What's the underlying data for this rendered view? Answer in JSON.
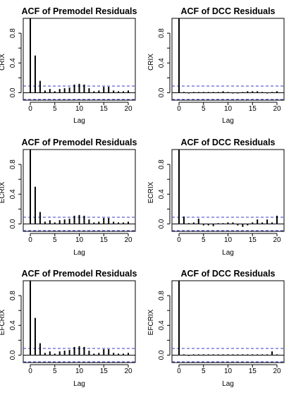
{
  "chart_data": [
    {
      "type": "bar",
      "title": "ACF of Premodel Residuals",
      "xlabel": "Lag",
      "ylabel": "CRIX",
      "xlim": [
        0,
        20
      ],
      "ylim": [
        -0.1,
        1.0
      ],
      "x_ticks": [
        "0",
        "5",
        "10",
        "15",
        "20"
      ],
      "y_ticks": [
        "0.0",
        "0.4",
        "0.8"
      ],
      "conf_bound": 0.09,
      "lags": [
        0,
        1,
        2,
        3,
        4,
        5,
        6,
        7,
        8,
        9,
        10,
        11,
        12,
        13,
        14,
        15,
        16,
        17,
        18,
        19,
        20
      ],
      "values": [
        1.0,
        0.5,
        0.16,
        0.03,
        0.05,
        0.02,
        0.05,
        0.06,
        0.07,
        0.11,
        0.12,
        0.11,
        0.06,
        0.02,
        0.03,
        0.08,
        0.08,
        0.03,
        0.02,
        0.02,
        0.03
      ]
    },
    {
      "type": "bar",
      "title": "ACF of DCC Residuals",
      "xlabel": "Lag",
      "ylabel": "CRIX",
      "xlim": [
        0,
        20
      ],
      "ylim": [
        -0.1,
        1.0
      ],
      "x_ticks": [
        "0",
        "5",
        "10",
        "15",
        "20"
      ],
      "y_ticks": [
        "0.0",
        "0.4",
        "0.8"
      ],
      "conf_bound": 0.09,
      "lags": [
        0,
        1,
        2,
        3,
        4,
        5,
        6,
        7,
        8,
        9,
        10,
        11,
        12,
        13,
        14,
        15,
        16,
        17,
        18,
        19,
        20
      ],
      "values": [
        1.0,
        0.01,
        -0.01,
        0.01,
        0.01,
        0.01,
        0.01,
        0.01,
        0.01,
        0.02,
        0.01,
        -0.01,
        -0.01,
        0.01,
        0.02,
        0.02,
        0.02,
        0.01,
        -0.01,
        0.01,
        0.02
      ]
    },
    {
      "type": "bar",
      "title": "ACF of Premodel Residuals",
      "xlabel": "Lag",
      "ylabel": "ECRIX",
      "xlim": [
        0,
        20
      ],
      "ylim": [
        -0.1,
        1.0
      ],
      "x_ticks": [
        "0",
        "5",
        "10",
        "15",
        "20"
      ],
      "y_ticks": [
        "0.0",
        "0.4",
        "0.8"
      ],
      "conf_bound": 0.09,
      "lags": [
        0,
        1,
        2,
        3,
        4,
        5,
        6,
        7,
        8,
        9,
        10,
        11,
        12,
        13,
        14,
        15,
        16,
        17,
        18,
        19,
        20
      ],
      "values": [
        1.0,
        0.5,
        0.16,
        0.03,
        0.05,
        0.02,
        0.05,
        0.06,
        0.07,
        0.11,
        0.12,
        0.11,
        0.06,
        0.02,
        0.03,
        0.08,
        0.08,
        0.03,
        0.02,
        0.02,
        0.03
      ]
    },
    {
      "type": "bar",
      "title": "ACF of DCC Residuals",
      "xlabel": "Lag",
      "ylabel": "ECRIX",
      "xlim": [
        0,
        20
      ],
      "ylim": [
        -0.1,
        1.0
      ],
      "x_ticks": [
        "0",
        "5",
        "10",
        "15",
        "20"
      ],
      "y_ticks": [
        "0.0",
        "0.4",
        "0.8"
      ],
      "conf_bound": 0.09,
      "lags": [
        0,
        1,
        2,
        3,
        4,
        5,
        6,
        7,
        8,
        9,
        10,
        11,
        12,
        13,
        14,
        15,
        16,
        17,
        18,
        19,
        20
      ],
      "values": [
        1.0,
        0.1,
        0.01,
        0.02,
        0.07,
        -0.02,
        -0.02,
        -0.03,
        0.01,
        0.01,
        0.02,
        0.02,
        -0.02,
        -0.04,
        -0.02,
        0.02,
        0.06,
        0.02,
        0.06,
        0.02,
        0.11
      ]
    },
    {
      "type": "bar",
      "title": "ACF of Premodel Residuals",
      "xlabel": "Lag",
      "ylabel": "EFCRIX",
      "xlim": [
        0,
        20
      ],
      "ylim": [
        -0.1,
        1.0
      ],
      "x_ticks": [
        "0",
        "5",
        "10",
        "15",
        "20"
      ],
      "y_ticks": [
        "0.0",
        "0.4",
        "0.8"
      ],
      "conf_bound": 0.09,
      "lags": [
        0,
        1,
        2,
        3,
        4,
        5,
        6,
        7,
        8,
        9,
        10,
        11,
        12,
        13,
        14,
        15,
        16,
        17,
        18,
        19,
        20
      ],
      "values": [
        1.0,
        0.5,
        0.16,
        0.03,
        0.05,
        0.02,
        0.05,
        0.06,
        0.07,
        0.11,
        0.12,
        0.11,
        0.06,
        0.02,
        0.03,
        0.08,
        0.08,
        0.03,
        0.02,
        0.02,
        0.03
      ]
    },
    {
      "type": "bar",
      "title": "ACF of DCC Residuals",
      "xlabel": "Lag",
      "ylabel": "EFCRIX",
      "xlim": [
        0,
        20
      ],
      "ylim": [
        -0.1,
        1.0
      ],
      "x_ticks": [
        "0",
        "5",
        "10",
        "15",
        "20"
      ],
      "y_ticks": [
        "0.0",
        "0.4",
        "0.8"
      ],
      "conf_bound": 0.09,
      "lags": [
        0,
        1,
        2,
        3,
        4,
        5,
        6,
        7,
        8,
        9,
        10,
        11,
        12,
        13,
        14,
        15,
        16,
        17,
        18,
        19,
        20
      ],
      "values": [
        1.0,
        0.01,
        -0.01,
        0.01,
        0.01,
        0.01,
        0.01,
        0.01,
        0.01,
        0.01,
        0.01,
        0.01,
        0.01,
        0.01,
        0.01,
        0.01,
        0.01,
        0.01,
        0.01,
        0.05,
        0.01
      ]
    }
  ]
}
